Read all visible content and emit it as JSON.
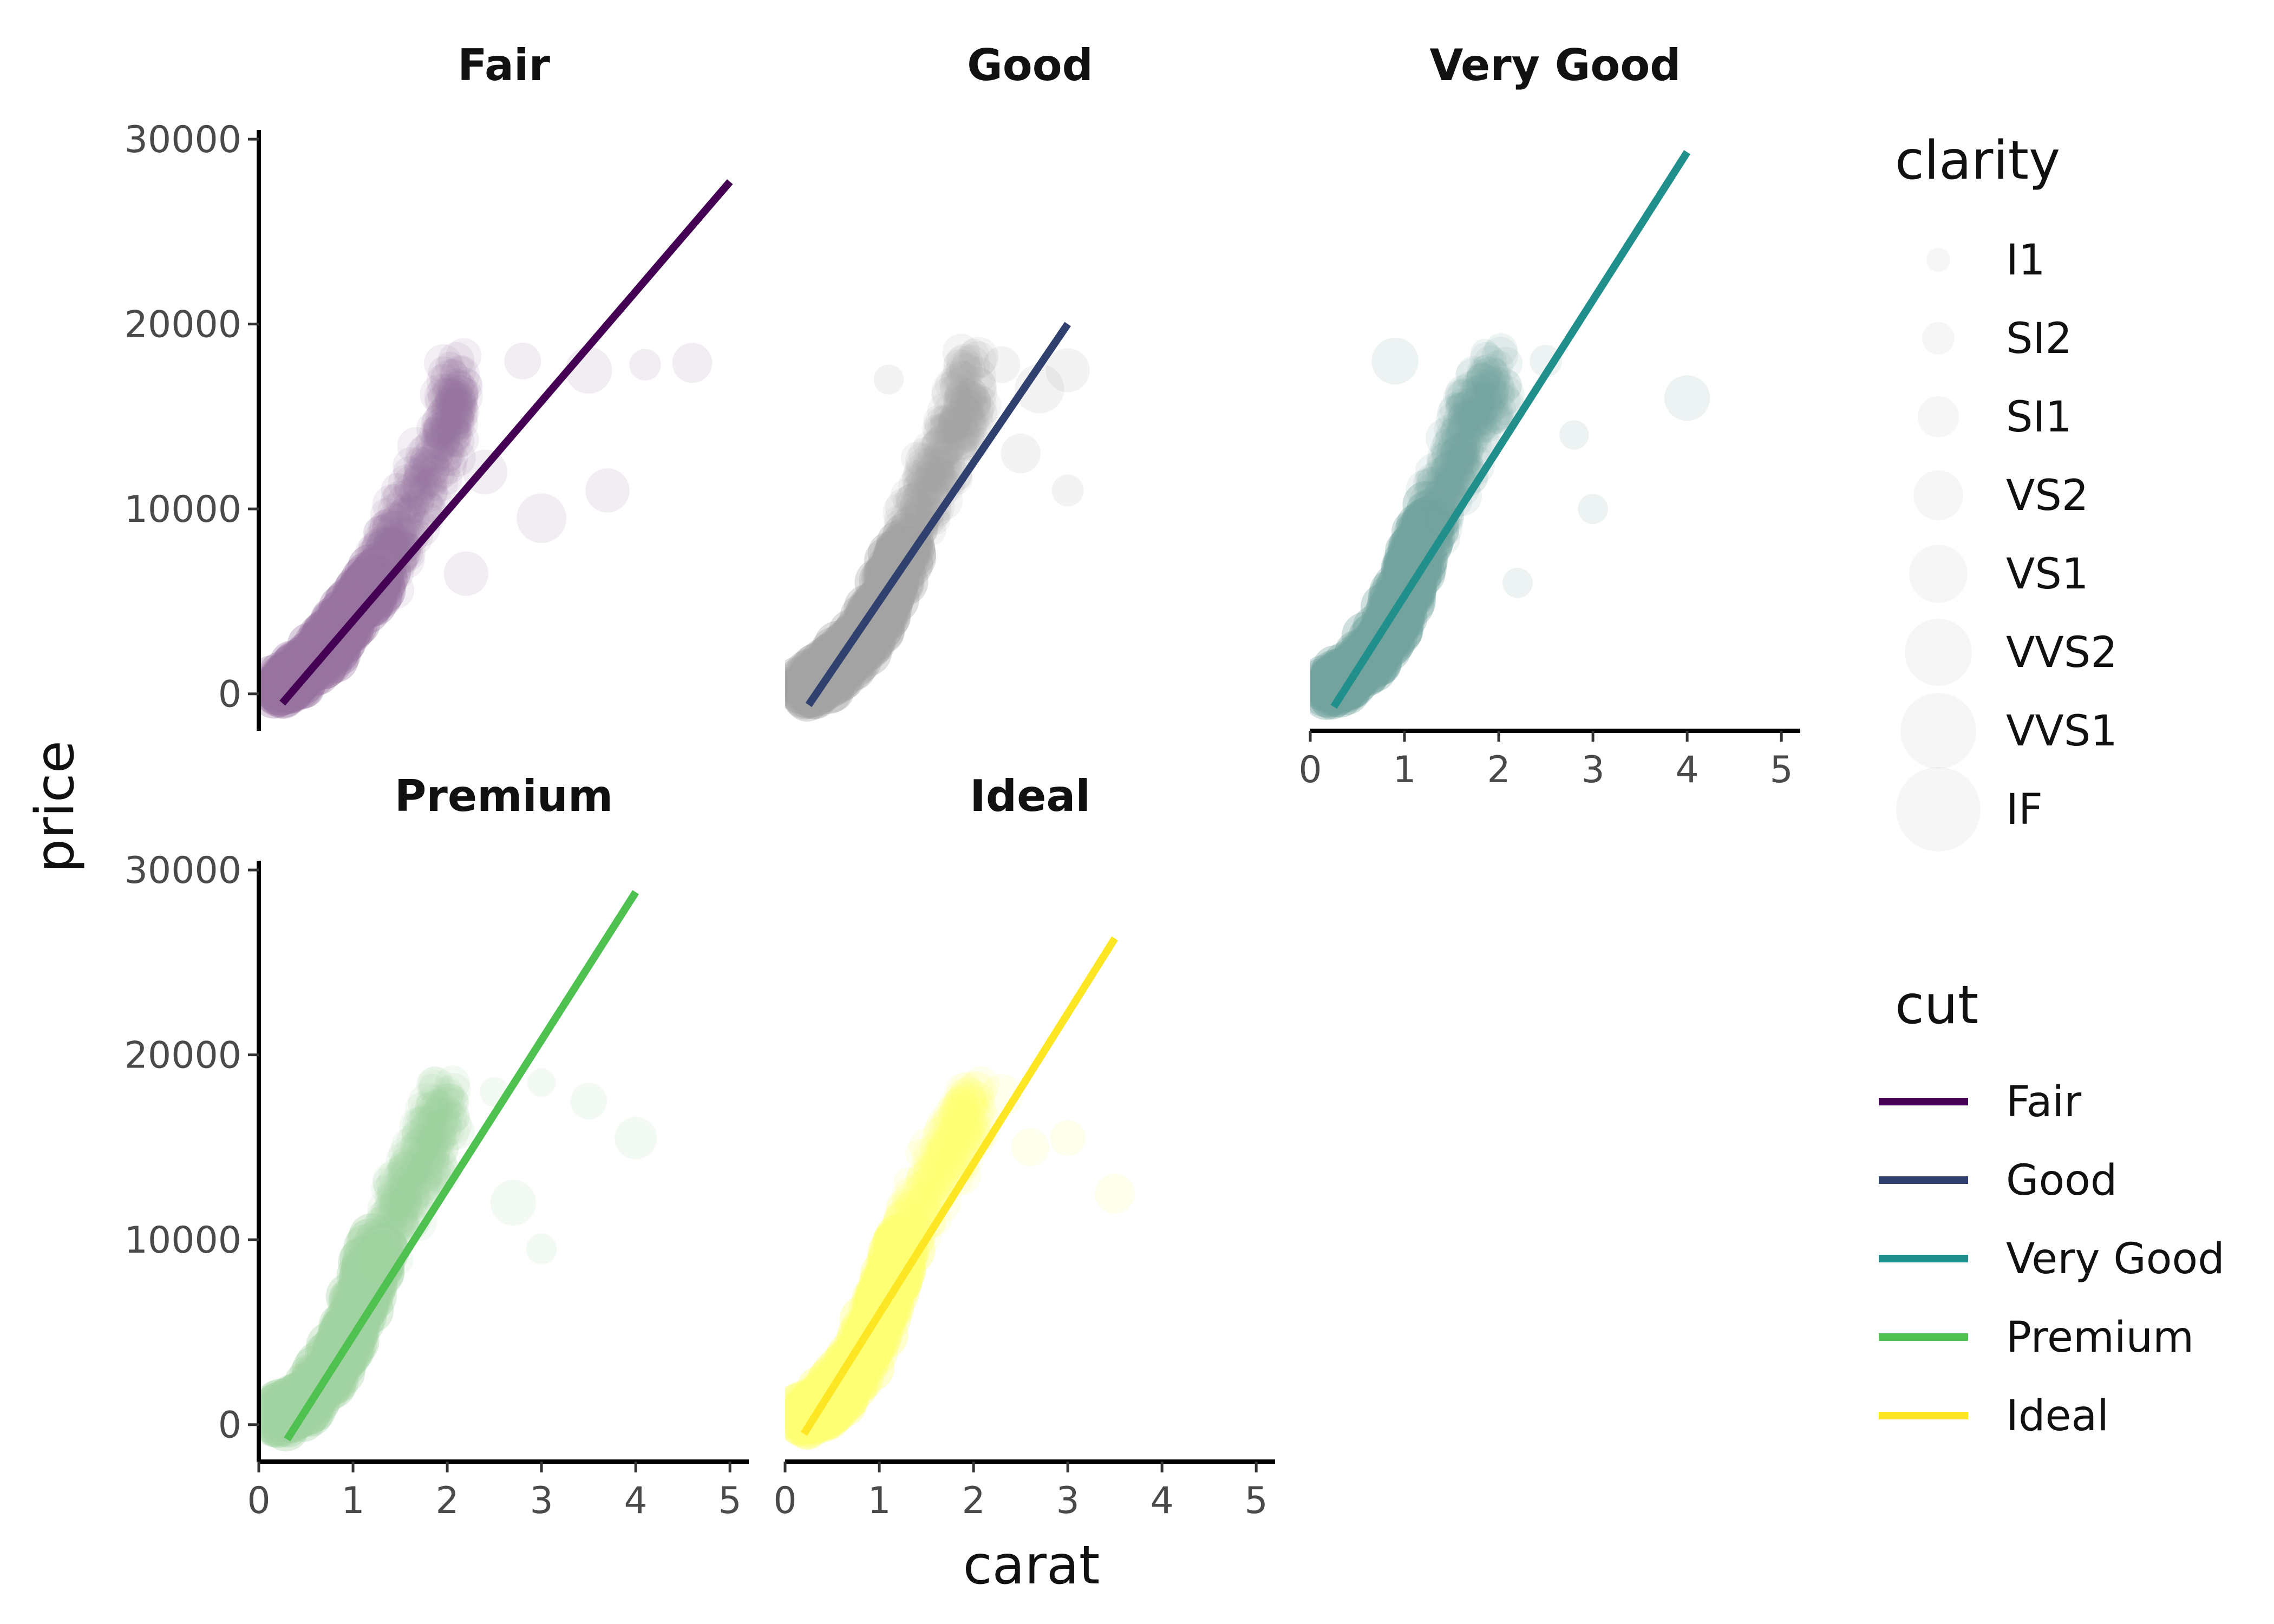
{
  "chart_data": {
    "type": "scatter",
    "xlabel": "carat",
    "ylabel": "price",
    "xlim": [
      0,
      5.2
    ],
    "ylim": [
      -2000,
      30500
    ],
    "x_ticks": [
      0,
      1,
      2,
      3,
      4,
      5
    ],
    "y_ticks": [
      0,
      10000,
      20000,
      30000
    ],
    "grid": false,
    "facets": [
      {
        "title": "Fair",
        "color": "#440154",
        "point_color": "#440154",
        "fit_line": {
          "x": [
            0.25,
            5.0
          ],
          "y": [
            -500,
            27700
          ]
        },
        "cluster": [
          [
            0.2,
            300
          ],
          [
            0.5,
            1400
          ],
          [
            0.8,
            3000
          ],
          [
            1.0,
            4500
          ],
          [
            1.3,
            6500
          ],
          [
            1.5,
            9000
          ],
          [
            2.0,
            14000
          ],
          [
            2.1,
            17000
          ]
        ],
        "outliers": [
          [
            2.8,
            18000
          ],
          [
            3.5,
            17500
          ],
          [
            4.1,
            17800
          ],
          [
            4.6,
            17900
          ],
          [
            2.4,
            12000
          ],
          [
            3.0,
            9500
          ],
          [
            3.7,
            11000
          ],
          [
            2.2,
            6500
          ]
        ]
      },
      {
        "title": "Good",
        "color": "#31416F",
        "point_color": "#5A5A5A",
        "fit_line": {
          "x": [
            0.25,
            3.0
          ],
          "y": [
            -600,
            20000
          ]
        },
        "cluster": [
          [
            0.2,
            300
          ],
          [
            0.5,
            1200
          ],
          [
            0.8,
            2800
          ],
          [
            1.0,
            4500
          ],
          [
            1.2,
            7000
          ],
          [
            1.5,
            11000
          ],
          [
            1.8,
            14000
          ],
          [
            2.0,
            17500
          ]
        ],
        "outliers": [
          [
            2.3,
            17800
          ],
          [
            2.7,
            16500
          ],
          [
            3.0,
            17500
          ],
          [
            2.5,
            13000
          ],
          [
            3.0,
            11000
          ],
          [
            1.1,
            17000
          ]
        ]
      },
      {
        "title": "Very Good",
        "color": "#21908C",
        "point_color": "#005A50",
        "fit_line": {
          "x": [
            0.25,
            4.0
          ],
          "y": [
            -700,
            29300
          ]
        },
        "cluster": [
          [
            0.2,
            300
          ],
          [
            0.5,
            1300
          ],
          [
            0.8,
            3200
          ],
          [
            1.0,
            5500
          ],
          [
            1.2,
            8500
          ],
          [
            1.5,
            12000
          ],
          [
            1.7,
            14500
          ],
          [
            2.0,
            17500
          ]
        ],
        "outliers": [
          [
            2.5,
            18000
          ],
          [
            2.8,
            14000
          ],
          [
            3.0,
            10000
          ],
          [
            4.0,
            16000
          ],
          [
            2.2,
            6000
          ],
          [
            0.9,
            18000
          ]
        ]
      },
      {
        "title": "Premium",
        "color": "#4EC150",
        "point_color": "#55AF55",
        "fit_line": {
          "x": [
            0.3,
            4.0
          ],
          "y": [
            -800,
            28800
          ]
        },
        "cluster": [
          [
            0.2,
            300
          ],
          [
            0.5,
            1300
          ],
          [
            0.8,
            3200
          ],
          [
            1.0,
            5500
          ],
          [
            1.2,
            8500
          ],
          [
            1.5,
            12000
          ],
          [
            1.8,
            15000
          ],
          [
            2.0,
            17500
          ]
        ],
        "outliers": [
          [
            2.5,
            18000
          ],
          [
            3.0,
            18500
          ],
          [
            3.5,
            17500
          ],
          [
            4.0,
            15500
          ],
          [
            3.0,
            9500
          ],
          [
            2.7,
            12000
          ]
        ]
      },
      {
        "title": "Ideal",
        "color": "#FDE725",
        "point_color": "#FFFF00",
        "fit_line": {
          "x": [
            0.2,
            3.5
          ],
          "y": [
            -500,
            26300
          ]
        },
        "cluster": [
          [
            0.2,
            300
          ],
          [
            0.5,
            1500
          ],
          [
            0.8,
            3500
          ],
          [
            1.0,
            6000
          ],
          [
            1.2,
            9000
          ],
          [
            1.5,
            13000
          ],
          [
            1.8,
            15500
          ],
          [
            2.0,
            17500
          ]
        ],
        "outliers": [
          [
            2.3,
            17800
          ],
          [
            2.6,
            15000
          ],
          [
            3.0,
            15500
          ],
          [
            3.5,
            12500
          ]
        ]
      }
    ],
    "legends": [
      {
        "title": "clarity",
        "kind": "size",
        "entries": [
          "I1",
          "SI2",
          "SI1",
          "VS2",
          "VS1",
          "VVS2",
          "VVS1",
          "IF"
        ]
      },
      {
        "title": "cut",
        "kind": "line",
        "entries": [
          "Fair",
          "Good",
          "Very Good",
          "Premium",
          "Ideal"
        ],
        "colors": [
          "#440154",
          "#31416F",
          "#21908C",
          "#4EC150",
          "#FDE725"
        ]
      }
    ],
    "legend_position": "right"
  }
}
